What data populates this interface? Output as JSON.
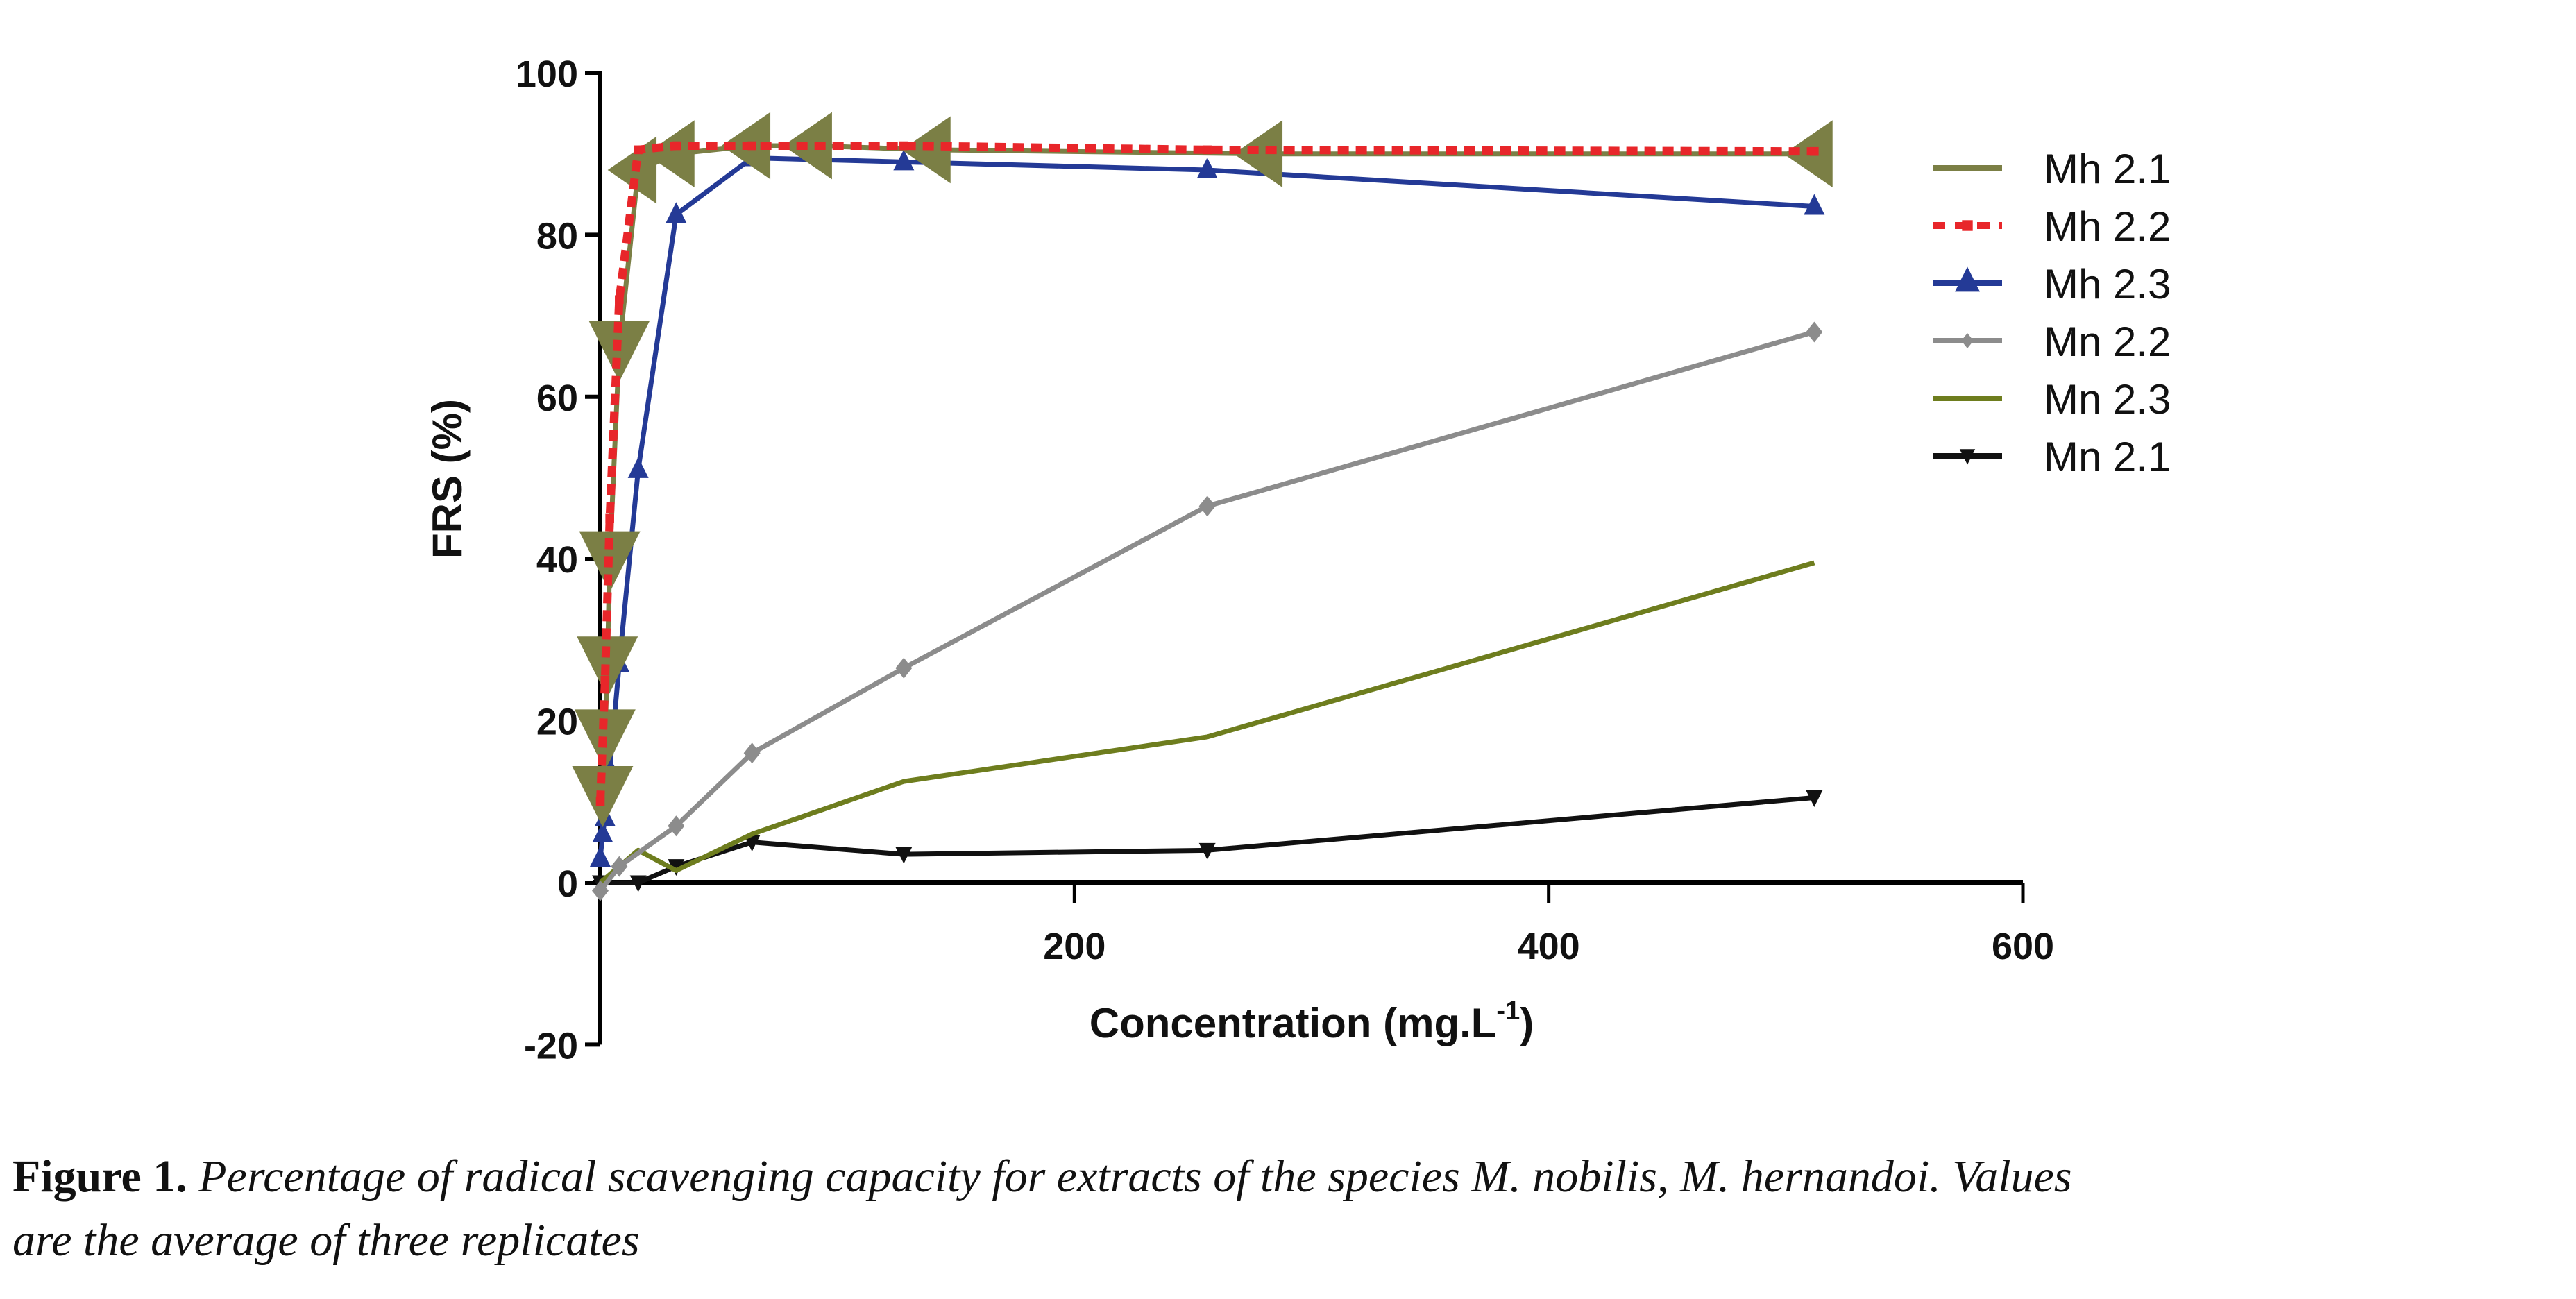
{
  "chart_data": {
    "type": "line",
    "title": "",
    "xlabel": "Concentration (mg.L",
    "xlabel_sup": "-1",
    "xlabel_end": ")",
    "ylabel": "FRS (%)",
    "xlim": [
      0,
      600
    ],
    "ylim": [
      -20,
      100
    ],
    "xticks": [
      200,
      400,
      600
    ],
    "yticks": [
      -20,
      0,
      20,
      40,
      60,
      80,
      100
    ],
    "grid": false,
    "legend_position": "right",
    "x": [
      0,
      2,
      4,
      8,
      16,
      32,
      64,
      128,
      256,
      512
    ],
    "series": [
      {
        "name": "Mh 2.1",
        "color": "#7b7f45",
        "dash": "solid",
        "marker": "triangle-mixed",
        "points": [
          [
            1,
            11
          ],
          [
            2,
            18
          ],
          [
            3,
            27
          ],
          [
            4,
            40
          ],
          [
            8,
            66
          ],
          [
            16,
            88
          ],
          [
            32,
            90
          ],
          [
            64,
            91
          ],
          [
            90,
            91
          ],
          [
            140,
            90.5
          ],
          [
            280,
            90
          ],
          [
            512,
            90
          ]
        ]
      },
      {
        "name": "Mh 2.2",
        "color": "#e8262a",
        "dash": "dashed",
        "marker": "circle",
        "points": [
          [
            0,
            10
          ],
          [
            2,
            25
          ],
          [
            4,
            45
          ],
          [
            8,
            72
          ],
          [
            16,
            90.5
          ],
          [
            32,
            91
          ],
          [
            64,
            91
          ],
          [
            128,
            91
          ],
          [
            256,
            90.5
          ],
          [
            512,
            90.3
          ]
        ]
      },
      {
        "name": "Mh 2.3",
        "color": "#243a96",
        "dash": "solid",
        "marker": "triangle-up",
        "points": [
          [
            0,
            3
          ],
          [
            1,
            6
          ],
          [
            2,
            8
          ],
          [
            4,
            14
          ],
          [
            8,
            27
          ],
          [
            16,
            51
          ],
          [
            32,
            82.5
          ],
          [
            64,
            89.5
          ],
          [
            128,
            89
          ],
          [
            256,
            88
          ],
          [
            512,
            83.5
          ]
        ]
      },
      {
        "name": "Mn 2.2",
        "color": "#8c8c8c",
        "dash": "solid",
        "marker": "diamond",
        "points": [
          [
            0,
            -1
          ],
          [
            8,
            2
          ],
          [
            32,
            7
          ],
          [
            64,
            16
          ],
          [
            128,
            26.5
          ],
          [
            256,
            46.5
          ],
          [
            512,
            68
          ]
        ]
      },
      {
        "name": "Mn 2.3",
        "color": "#6e7d1e",
        "dash": "solid",
        "marker": "none",
        "points": [
          [
            0,
            0
          ],
          [
            16,
            4
          ],
          [
            32,
            1.5
          ],
          [
            64,
            6
          ],
          [
            128,
            12.5
          ],
          [
            256,
            18
          ],
          [
            512,
            39.5
          ]
        ]
      },
      {
        "name": "Mn 2.1",
        "color": "#111111",
        "dash": "solid",
        "marker": "triangle-down",
        "points": [
          [
            0,
            0
          ],
          [
            16,
            0
          ],
          [
            32,
            2
          ],
          [
            64,
            5
          ],
          [
            128,
            3.5
          ],
          [
            256,
            4
          ],
          [
            512,
            10.5
          ]
        ]
      }
    ]
  },
  "caption": {
    "figure_label": "Figure 1.",
    "text_line1": "Percentage of radical scavenging capacity for extracts of the species M. nobilis, M. hernandoi. Values",
    "text_line2": "are the average of three replicates"
  }
}
